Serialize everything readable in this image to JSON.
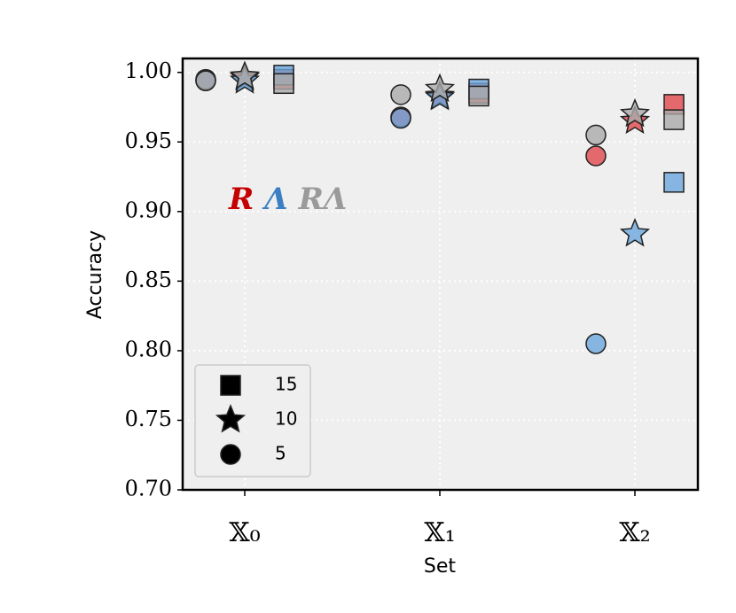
{
  "chart_data": {
    "type": "scatter",
    "x_label": "Set",
    "y_label": "Accuracy",
    "categories": [
      "𝕏₀",
      "𝕏₁",
      "𝕏₂"
    ],
    "groups": [
      {
        "name": "15",
        "marker": "square"
      },
      {
        "name": "10",
        "marker": "star"
      },
      {
        "name": "5",
        "marker": "circle"
      }
    ],
    "series": [
      {
        "name": "R",
        "color": "#e0474c",
        "label_color": "#c40000",
        "values": [
          [
            0.995,
            0.996,
            0.994
          ],
          [
            0.985,
            0.983,
            0.968
          ],
          [
            0.977,
            0.965,
            0.94
          ]
        ]
      },
      {
        "name": "Λ",
        "color": "#6aa6dc",
        "label_color": "#3a7fc4",
        "values": [
          [
            0.998,
            0.994,
            0.995
          ],
          [
            0.988,
            0.982,
            0.967
          ],
          [
            0.921,
            0.884,
            0.805
          ]
        ]
      },
      {
        "name": "RΛ",
        "color": "#aaaaaa",
        "label_color": "#9a9a9a",
        "values": [
          [
            0.992,
            0.997,
            0.994
          ],
          [
            0.983,
            0.988,
            0.984
          ],
          [
            0.966,
            0.97,
            0.955
          ]
        ]
      }
    ],
    "ylim": [
      0.7,
      1.01
    ],
    "yticks": [
      {
        "value": 0.7,
        "label": "0.70"
      },
      {
        "value": 0.75,
        "label": "0.75"
      },
      {
        "value": 0.8,
        "label": "0.80"
      },
      {
        "value": 0.85,
        "label": "0.85"
      },
      {
        "value": 0.9,
        "label": "0.90"
      },
      {
        "value": 0.95,
        "label": "0.95"
      },
      {
        "value": 1.0,
        "label": "1.00"
      }
    ],
    "grid": true,
    "legend": "lower left"
  }
}
